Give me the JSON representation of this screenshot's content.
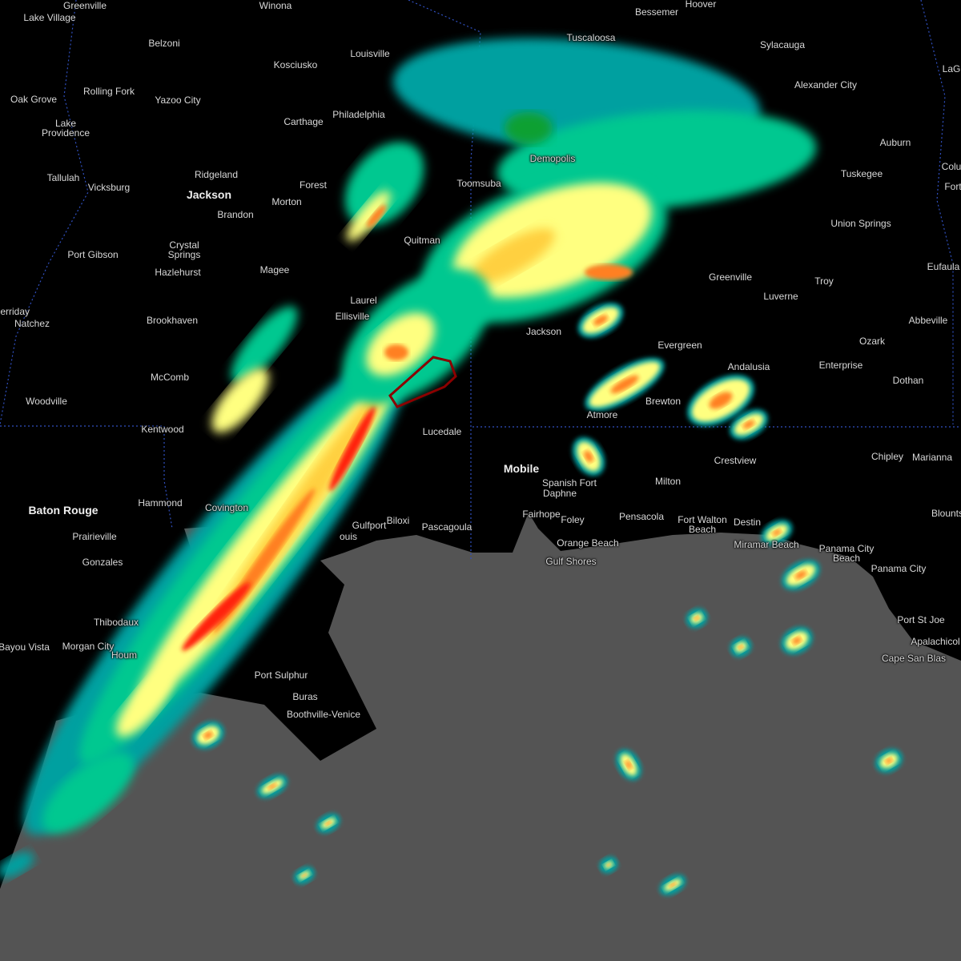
{
  "map": {
    "colors": {
      "land": "#000000",
      "water": "#545454",
      "border": "#3050c0",
      "warning_polygon": "#8b0000",
      "radar": [
        "#00a0a0",
        "#00c890",
        "#10a030",
        "#ffff80",
        "#ffd040",
        "#ff8020",
        "#ff2010"
      ]
    },
    "warning_polygon": {
      "type": "severe-thunderstorm-warning"
    },
    "cities": [
      {
        "name": "Greenville"
      },
      {
        "name": "Lake Village"
      },
      {
        "name": "Winona"
      },
      {
        "name": "Hoover"
      },
      {
        "name": "Bessemer"
      },
      {
        "name": "Tuscaloosa"
      },
      {
        "name": "Sylacauga"
      },
      {
        "name": "Belzoni"
      },
      {
        "name": "Louisville"
      },
      {
        "name": "Kosciusko"
      },
      {
        "name": "Alexander City"
      },
      {
        "name": "LaG"
      },
      {
        "name": "Rolling Fork"
      },
      {
        "name": "Oak Grove"
      },
      {
        "name": "Yazoo City"
      },
      {
        "name": "Lake Providence"
      },
      {
        "name": "Carthage"
      },
      {
        "name": "Philadelphia"
      },
      {
        "name": "Auburn"
      },
      {
        "name": "Colu"
      },
      {
        "name": "Tuskegee"
      },
      {
        "name": "Tallulah"
      },
      {
        "name": "Vicksburg"
      },
      {
        "name": "Ridgeland"
      },
      {
        "name": "Jackson",
        "major": true
      },
      {
        "name": "Forest"
      },
      {
        "name": "Morton"
      },
      {
        "name": "Brandon"
      },
      {
        "name": "Toomsuba"
      },
      {
        "name": "Demopolis"
      },
      {
        "name": "Union Springs"
      },
      {
        "name": "Fort"
      },
      {
        "name": "Quitman"
      },
      {
        "name": "Crystal Springs"
      },
      {
        "name": "Port Gibson"
      },
      {
        "name": "Magee"
      },
      {
        "name": "Hazlehurst"
      },
      {
        "name": "Greenville"
      },
      {
        "name": "Troy"
      },
      {
        "name": "Eufaula"
      },
      {
        "name": "Laurel"
      },
      {
        "name": "Ellisville"
      },
      {
        "name": "Luverne"
      },
      {
        "name": "Natchez"
      },
      {
        "name": "Brookhaven"
      },
      {
        "name": "Ferriday"
      },
      {
        "name": "Abbeville"
      },
      {
        "name": "Jackson"
      },
      {
        "name": "Evergreen"
      },
      {
        "name": "Ozark"
      },
      {
        "name": "Andalusia"
      },
      {
        "name": "Enterprise"
      },
      {
        "name": "McComb"
      },
      {
        "name": "Dothan"
      },
      {
        "name": "Woodville"
      },
      {
        "name": "Brewton"
      },
      {
        "name": "Kentwood"
      },
      {
        "name": "Lucedale"
      },
      {
        "name": "Atmore"
      },
      {
        "name": "Crestview"
      },
      {
        "name": "Chipley"
      },
      {
        "name": "Marianna"
      },
      {
        "name": "Mobile",
        "major": true
      },
      {
        "name": "Spanish Fort"
      },
      {
        "name": "Milton"
      },
      {
        "name": "Daphne"
      },
      {
        "name": "Baton Rouge",
        "major": true
      },
      {
        "name": "Hammond"
      },
      {
        "name": "Covington"
      },
      {
        "name": "Blounts"
      },
      {
        "name": "Fairhope"
      },
      {
        "name": "Pensacola"
      },
      {
        "name": "Fort Walton Beach"
      },
      {
        "name": "Destin"
      },
      {
        "name": "Biloxi"
      },
      {
        "name": "Gulfport"
      },
      {
        "name": "Pascagoula"
      },
      {
        "name": "Foley"
      },
      {
        "name": "Prairieville"
      },
      {
        "name": "ouis"
      },
      {
        "name": "Orange Beach"
      },
      {
        "name": "Miramar Beach"
      },
      {
        "name": "Panama City Beach"
      },
      {
        "name": "Gonzales"
      },
      {
        "name": "Gulf Shores"
      },
      {
        "name": "Panama City"
      },
      {
        "name": "Thibodaux"
      },
      {
        "name": "Port St Joe"
      },
      {
        "name": "Bayou Vista"
      },
      {
        "name": "Morgan City"
      },
      {
        "name": "Apalachicol"
      },
      {
        "name": "Houm"
      },
      {
        "name": "Cape San Blas"
      },
      {
        "name": "Port Sulphur"
      },
      {
        "name": "Buras"
      },
      {
        "name": "Boothville-Venice"
      }
    ]
  }
}
